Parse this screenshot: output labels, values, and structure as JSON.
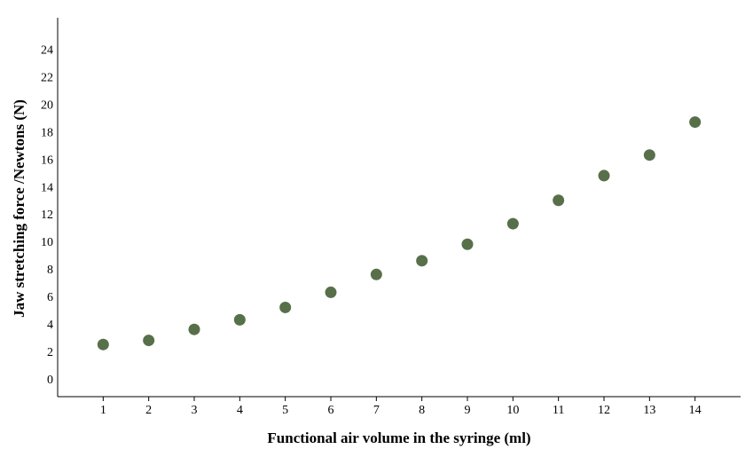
{
  "chart_data": {
    "type": "scatter",
    "xlabel": "Functional air volume in the syringe  (ml)",
    "ylabel": "Jaw stretching force /Newtons (N)",
    "x": [
      1,
      2,
      3,
      4,
      5,
      6,
      7,
      8,
      9,
      10,
      11,
      12,
      13,
      14
    ],
    "y": [
      2.5,
      2.8,
      3.6,
      4.3,
      5.2,
      6.3,
      7.6,
      8.6,
      9.8,
      11.3,
      13.0,
      14.8,
      16.3,
      18.7
    ],
    "xticks": [
      "1",
      "2",
      "3",
      "4",
      "5",
      "6",
      "7",
      "8",
      "9",
      "10",
      "11",
      "12",
      "13",
      "14"
    ],
    "yticks": [
      "0",
      "2",
      "4",
      "6",
      "8",
      "10",
      "12",
      "14",
      "16",
      "18",
      "20",
      "22",
      "24"
    ],
    "xlim": [
      0,
      15
    ],
    "ylim": [
      -1.3,
      26.3
    ],
    "grid": false,
    "marker_color": "#58704a",
    "axis_color": "#000000"
  }
}
